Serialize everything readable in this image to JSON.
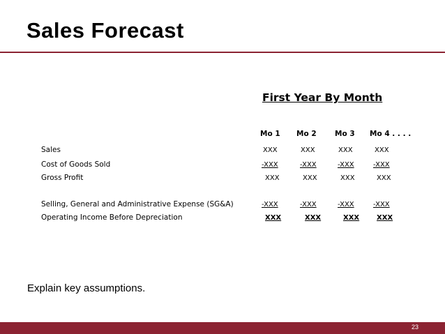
{
  "slide": {
    "title": "Sales Forecast",
    "heading": "First Year By Month",
    "note": "Explain key assumptions.",
    "page_number": "23",
    "colors": {
      "accent": "#8b2332",
      "text": "#000000",
      "background": "#ffffff"
    }
  },
  "table": {
    "columns": [
      "Mo 1",
      "Mo 2",
      "Mo 3",
      "Mo 4 . . . ."
    ],
    "rows": [
      {
        "label": "Sales",
        "values": [
          "XXX",
          "XXX",
          "XXX",
          "XXX"
        ]
      },
      {
        "label": "Cost of Goods Sold",
        "values": [
          "-XXX",
          "-XXX",
          "-XXX",
          "-XXX"
        ]
      },
      {
        "label": "Gross Profit",
        "values": [
          "XXX",
          "XXX",
          "XXX",
          "XXX"
        ]
      },
      {
        "label": "Selling, General and Administrative Expense (SG&A)",
        "values": [
          "-XXX",
          "-XXX",
          "-XXX",
          "-XXX"
        ]
      },
      {
        "label": "Operating Income Before Depreciation",
        "values": [
          "XXX",
          "XXX",
          "XXX",
          "XXX"
        ]
      }
    ]
  }
}
